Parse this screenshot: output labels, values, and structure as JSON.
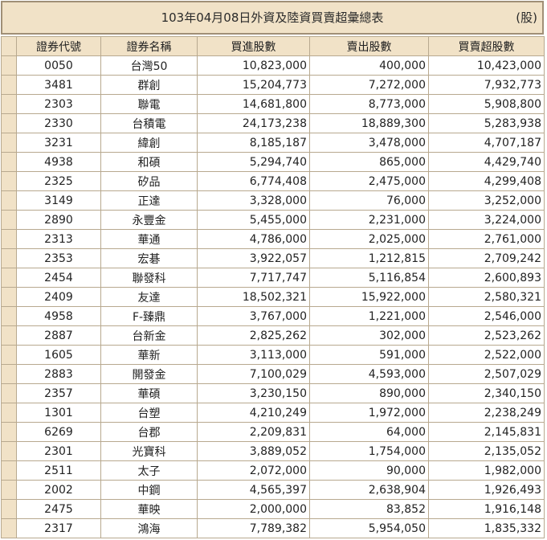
{
  "header": {
    "title": "103年04月08日外資及陸資買賣超彙總表",
    "unit": "(股)"
  },
  "columns": [
    "證券代號",
    "證券名稱",
    "買進股數",
    "賣出股數",
    "買賣超股數"
  ],
  "rows": [
    [
      "0050",
      "台灣50",
      "10,823,000",
      "400,000",
      "10,423,000"
    ],
    [
      "3481",
      "群創",
      "15,204,773",
      "7,272,000",
      "7,932,773"
    ],
    [
      "2303",
      "聯電",
      "14,681,800",
      "8,773,000",
      "5,908,800"
    ],
    [
      "2330",
      "台積電",
      "24,173,238",
      "18,889,300",
      "5,283,938"
    ],
    [
      "3231",
      "緯創",
      "8,185,187",
      "3,478,000",
      "4,707,187"
    ],
    [
      "4938",
      "和碩",
      "5,294,740",
      "865,000",
      "4,429,740"
    ],
    [
      "2325",
      "矽品",
      "6,774,408",
      "2,475,000",
      "4,299,408"
    ],
    [
      "3149",
      "正達",
      "3,328,000",
      "76,000",
      "3,252,000"
    ],
    [
      "2890",
      "永豐金",
      "5,455,000",
      "2,231,000",
      "3,224,000"
    ],
    [
      "2313",
      "華通",
      "4,786,000",
      "2,025,000",
      "2,761,000"
    ],
    [
      "2353",
      "宏碁",
      "3,922,057",
      "1,212,815",
      "2,709,242"
    ],
    [
      "2454",
      "聯發科",
      "7,717,747",
      "5,116,854",
      "2,600,893"
    ],
    [
      "2409",
      "友達",
      "18,502,321",
      "15,922,000",
      "2,580,321"
    ],
    [
      "4958",
      "F-臻鼎",
      "3,767,000",
      "1,221,000",
      "2,546,000"
    ],
    [
      "2887",
      "台新金",
      "2,825,262",
      "302,000",
      "2,523,262"
    ],
    [
      "1605",
      "華新",
      "3,113,000",
      "591,000",
      "2,522,000"
    ],
    [
      "2883",
      "開發金",
      "7,100,029",
      "4,593,000",
      "2,507,029"
    ],
    [
      "2357",
      "華碩",
      "3,230,150",
      "890,000",
      "2,340,150"
    ],
    [
      "1301",
      "台塑",
      "4,210,249",
      "1,972,000",
      "2,238,249"
    ],
    [
      "6269",
      "台郡",
      "2,209,831",
      "64,000",
      "2,145,831"
    ],
    [
      "2301",
      "光寶科",
      "3,889,052",
      "1,754,000",
      "2,135,052"
    ],
    [
      "2511",
      "太子",
      "2,072,000",
      "90,000",
      "1,982,000"
    ],
    [
      "2002",
      "中鋼",
      "4,565,397",
      "2,638,904",
      "1,926,493"
    ],
    [
      "2475",
      "華映",
      "2,000,000",
      "83,852",
      "1,916,148"
    ],
    [
      "2317",
      "鴻海",
      "7,789,382",
      "5,954,050",
      "1,835,332"
    ]
  ]
}
